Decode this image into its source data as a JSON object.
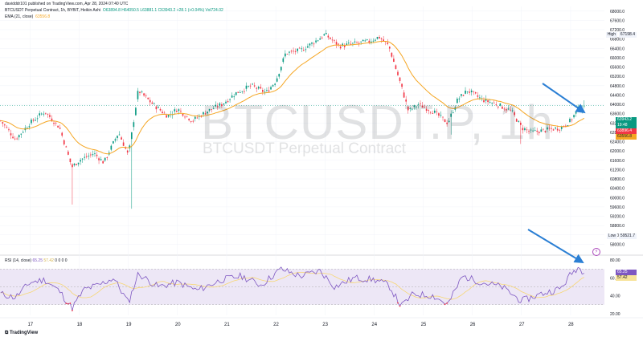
{
  "header": {
    "top_line": "davidddr101 published on TradingView.com, Apr 28, 2024 07:40 UTC",
    "symbol_line": "BTCUSDT Perpetual Contract, 1h, BYBIT, Heikin Ashi",
    "ohlc": "O63894.8  H64050.5  L63881.1  C63943.2  +28.1 (+0.04%)  Vol724.02",
    "ema_label": "EMA (21, close)",
    "ema_value": "63556.8"
  },
  "watermark": {
    "big": "BTCUSDT.P, 1h",
    "small": "BTCUSDT Perpetual Contract"
  },
  "price_tags": {
    "high_label": "High",
    "high_value": "67198.4",
    "low_label": "Low",
    "low_value": "59521.7",
    "last_price": "63943.2",
    "countdown": "19:48",
    "second_price": "63896.4",
    "ema_price": "63556.8"
  },
  "rsi": {
    "label": "RSI (14, close)",
    "value": "65.25",
    "ma_value": "57.42",
    "extras": "0  0  0  0"
  },
  "footer": {
    "brand": "TradingView"
  },
  "chart_data": [
    {
      "type": "candlestick",
      "symbol": "BTCUSDT.P",
      "interval": "1h",
      "ylim": [
        57600,
        68200
      ],
      "y_ticks": [
        58000,
        58400,
        58800,
        59200,
        59600,
        60000,
        60400,
        60800,
        61200,
        61600,
        62000,
        62400,
        62800,
        63200,
        63600,
        64000,
        64400,
        64800,
        65200,
        65600,
        66000,
        66400,
        66800,
        67200,
        67600,
        68000
      ],
      "y_tick_labels": [
        "58000.0",
        "58400.0",
        "58800.0",
        "59200.0",
        "59600.0",
        "60000.0",
        "60400.0",
        "60800.0",
        "61200.0",
        "61600.0",
        "62000.0",
        "62400.0",
        "62800.0",
        "63200.0",
        "63600.0",
        "64000.0",
        "64400.0",
        "64800.0",
        "65200.0",
        "65600.0",
        "66000.0",
        "66400.0",
        "66800.0",
        "67200.0",
        "67600.0",
        "68000.0"
      ],
      "x_tick_labels": [
        "17",
        "18",
        "19",
        "20",
        "21",
        "22",
        "23",
        "24",
        "25",
        "26",
        "27",
        "28"
      ],
      "anchors": [
        {
          "day": 16.4,
          "close": 63300
        },
        {
          "day": 16.7,
          "close": 62500
        },
        {
          "day": 17.0,
          "close": 63200
        },
        {
          "day": 17.3,
          "close": 63700
        },
        {
          "day": 17.6,
          "close": 63000
        },
        {
          "day": 17.85,
          "close": 61300
        },
        {
          "day": 18.0,
          "close": 61600
        },
        {
          "day": 18.3,
          "close": 61900
        },
        {
          "day": 18.5,
          "close": 61500
        },
        {
          "day": 18.8,
          "close": 62800
        },
        {
          "day": 19.0,
          "close": 61800
        },
        {
          "day": 19.2,
          "close": 64600
        },
        {
          "day": 19.5,
          "close": 64000
        },
        {
          "day": 19.8,
          "close": 63500
        },
        {
          "day": 20.0,
          "close": 63800
        },
        {
          "day": 20.3,
          "close": 63300
        },
        {
          "day": 20.6,
          "close": 63700
        },
        {
          "day": 20.9,
          "close": 64000
        },
        {
          "day": 21.2,
          "close": 64500
        },
        {
          "day": 21.5,
          "close": 64800
        },
        {
          "day": 21.8,
          "close": 64500
        },
        {
          "day": 22.0,
          "close": 65000
        },
        {
          "day": 22.2,
          "close": 66200
        },
        {
          "day": 22.5,
          "close": 66300
        },
        {
          "day": 22.8,
          "close": 66700
        },
        {
          "day": 23.0,
          "close": 67000
        },
        {
          "day": 23.3,
          "close": 66500
        },
        {
          "day": 23.6,
          "close": 66600
        },
        {
          "day": 23.9,
          "close": 66700
        },
        {
          "day": 24.1,
          "close": 66900
        },
        {
          "day": 24.3,
          "close": 66500
        },
        {
          "day": 24.55,
          "close": 64800
        },
        {
          "day": 24.7,
          "close": 63700
        },
        {
          "day": 24.9,
          "close": 64000
        },
        {
          "day": 25.2,
          "close": 63700
        },
        {
          "day": 25.5,
          "close": 63200
        },
        {
          "day": 25.7,
          "close": 64200
        },
        {
          "day": 25.9,
          "close": 64600
        },
        {
          "day": 26.2,
          "close": 64200
        },
        {
          "day": 26.5,
          "close": 64000
        },
        {
          "day": 26.8,
          "close": 63700
        },
        {
          "day": 27.0,
          "close": 63000
        },
        {
          "day": 27.2,
          "close": 62800
        },
        {
          "day": 27.5,
          "close": 62900
        },
        {
          "day": 27.8,
          "close": 63000
        },
        {
          "day": 28.0,
          "close": 63300
        },
        {
          "day": 28.15,
          "close": 63800
        },
        {
          "day": 28.3,
          "close": 63943
        }
      ]
    },
    {
      "type": "line",
      "name": "RSI (14, close)",
      "ylim": [
        18,
        82
      ],
      "y_ticks": [
        20,
        40,
        60,
        80
      ],
      "y_tick_labels": [
        "20.00",
        "40.00",
        "60.00",
        "80.00"
      ],
      "bands": [
        30,
        70
      ],
      "anchors": [
        {
          "day": 16.4,
          "rsi": 42
        },
        {
          "day": 16.7,
          "rsi": 38
        },
        {
          "day": 17.0,
          "rsi": 55
        },
        {
          "day": 17.3,
          "rsi": 58
        },
        {
          "day": 17.6,
          "rsi": 45
        },
        {
          "day": 17.85,
          "rsi": 26
        },
        {
          "day": 18.1,
          "rsi": 47
        },
        {
          "day": 18.4,
          "rsi": 52
        },
        {
          "day": 18.7,
          "rsi": 60
        },
        {
          "day": 19.0,
          "rsi": 32
        },
        {
          "day": 19.2,
          "rsi": 65
        },
        {
          "day": 19.6,
          "rsi": 50
        },
        {
          "day": 20.0,
          "rsi": 55
        },
        {
          "day": 20.4,
          "rsi": 46
        },
        {
          "day": 20.9,
          "rsi": 58
        },
        {
          "day": 21.3,
          "rsi": 62
        },
        {
          "day": 21.7,
          "rsi": 52
        },
        {
          "day": 22.1,
          "rsi": 70
        },
        {
          "day": 22.5,
          "rsi": 62
        },
        {
          "day": 22.9,
          "rsi": 68
        },
        {
          "day": 23.2,
          "rsi": 50
        },
        {
          "day": 23.6,
          "rsi": 60
        },
        {
          "day": 24.0,
          "rsi": 58
        },
        {
          "day": 24.3,
          "rsi": 52
        },
        {
          "day": 24.55,
          "rsi": 28
        },
        {
          "day": 24.8,
          "rsi": 42
        },
        {
          "day": 25.2,
          "rsi": 40
        },
        {
          "day": 25.5,
          "rsi": 30
        },
        {
          "day": 25.8,
          "rsi": 62
        },
        {
          "day": 26.2,
          "rsi": 55
        },
        {
          "day": 26.6,
          "rsi": 50
        },
        {
          "day": 27.0,
          "rsi": 34
        },
        {
          "day": 27.4,
          "rsi": 42
        },
        {
          "day": 27.8,
          "rsi": 48
        },
        {
          "day": 28.0,
          "rsi": 64
        },
        {
          "day": 28.15,
          "rsi": 72
        },
        {
          "day": 28.3,
          "rsi": 65.25
        }
      ]
    }
  ],
  "colors": {
    "up": "#089981",
    "down": "#f23645",
    "ema": "#f5a623",
    "rsi_line": "#7e57c2",
    "rsi_ma": "#f7d774",
    "rsi_band": "#ede7f6",
    "arrow": "#2b7fd4",
    "grid": "#f0f3fa"
  }
}
